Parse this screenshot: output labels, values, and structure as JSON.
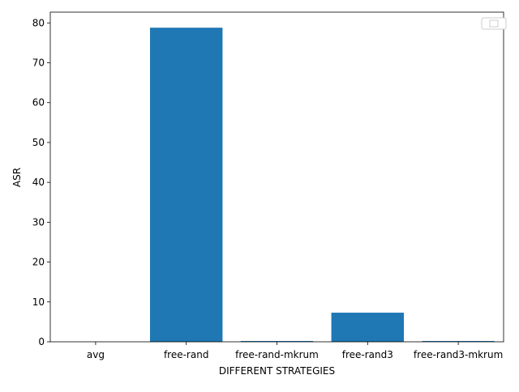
{
  "chart_data": {
    "type": "bar",
    "title": "",
    "xlabel": "DIFFERENT STRATEGIES",
    "ylabel": "ASR",
    "categories": [
      "avg",
      "free-rand",
      "free-rand-mkrum",
      "free-rand3",
      "free-rand3-mkrum"
    ],
    "series": [
      {
        "values": [
          0,
          78.8,
          0.2,
          7.3,
          0.2
        ]
      }
    ],
    "ylim": [
      0,
      82.7
    ],
    "yticks": [
      0,
      10,
      20,
      30,
      40,
      50,
      60,
      70,
      80
    ],
    "grid": false,
    "legend": "top-right",
    "colors": {
      "bar": "#1f77b4",
      "axis": "#000000",
      "legend_border": "#cccccc"
    }
  }
}
